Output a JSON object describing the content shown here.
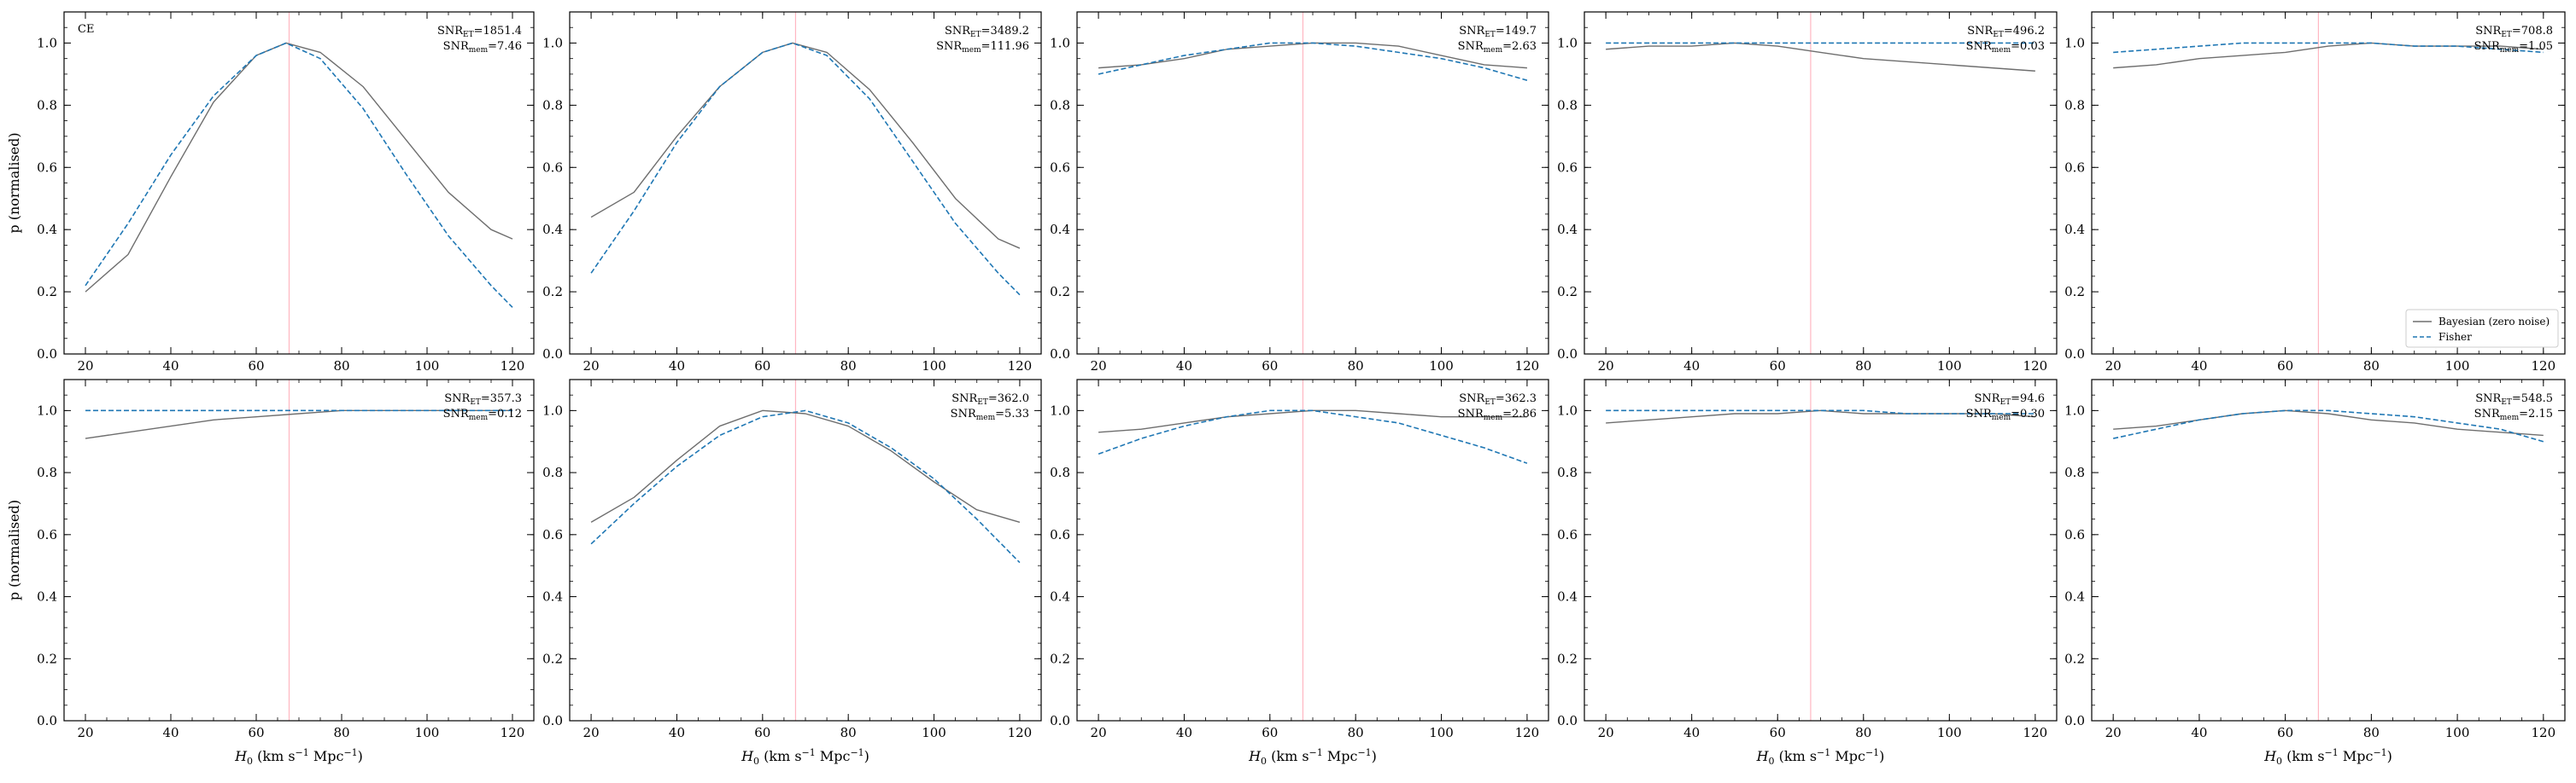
{
  "figure": {
    "ylabel": "p (normalised)",
    "xlabel": "$H_0$ (km s$^{-1}$ Mpc$^{-1}$)",
    "xlabel_main": "H",
    "xlabel_sub": "0",
    "xlabel_rest1": " (km s",
    "xlabel_sup1": "−1",
    "xlabel_rest2": " Mpc",
    "xlabel_sup2": "−1",
    "xlabel_rest3": ")",
    "colors": {
      "bayesian": "#6e6e6e",
      "fisher": "#1f77b4",
      "truth": "#ffb6c1"
    }
  },
  "chart_data": [
    {
      "type": "line",
      "panel_label": "CE",
      "snr_et": "1851.4",
      "snr_mem": "7.46",
      "truth_x": 67.7,
      "xlim": [
        15,
        125
      ],
      "ylim": [
        0,
        1.1
      ],
      "xticks": [
        20,
        40,
        60,
        80,
        100,
        120
      ],
      "yticks": [
        0.0,
        0.2,
        0.4,
        0.6,
        0.8,
        1.0
      ],
      "series": [
        {
          "name": "Bayesian (zero noise)",
          "style": "solid",
          "x": [
            20,
            30,
            40,
            50,
            60,
            67,
            75,
            85,
            95,
            105,
            115,
            120
          ],
          "y": [
            0.2,
            0.32,
            0.57,
            0.81,
            0.96,
            1.0,
            0.97,
            0.86,
            0.69,
            0.52,
            0.4,
            0.37
          ]
        },
        {
          "name": "Fisher",
          "style": "dashed",
          "x": [
            20,
            30,
            40,
            50,
            60,
            67,
            75,
            85,
            95,
            105,
            115,
            120
          ],
          "y": [
            0.22,
            0.42,
            0.64,
            0.83,
            0.96,
            1.0,
            0.95,
            0.79,
            0.58,
            0.38,
            0.22,
            0.15
          ]
        }
      ]
    },
    {
      "type": "line",
      "snr_et": "3489.2",
      "snr_mem": "111.96",
      "truth_x": 67.7,
      "xlim": [
        15,
        125
      ],
      "ylim": [
        0,
        1.1
      ],
      "xticks": [
        20,
        40,
        60,
        80,
        100,
        120
      ],
      "yticks": [
        0.0,
        0.2,
        0.4,
        0.6,
        0.8,
        1.0
      ],
      "series": [
        {
          "name": "Bayesian (zero noise)",
          "style": "solid",
          "x": [
            20,
            30,
            40,
            50,
            60,
            67,
            75,
            85,
            95,
            105,
            115,
            120
          ],
          "y": [
            0.44,
            0.52,
            0.7,
            0.86,
            0.97,
            1.0,
            0.97,
            0.85,
            0.68,
            0.5,
            0.37,
            0.34
          ]
        },
        {
          "name": "Fisher",
          "style": "dashed",
          "x": [
            20,
            30,
            40,
            50,
            60,
            67,
            75,
            85,
            95,
            105,
            115,
            120
          ],
          "y": [
            0.26,
            0.46,
            0.68,
            0.86,
            0.97,
            1.0,
            0.96,
            0.82,
            0.62,
            0.42,
            0.26,
            0.19
          ]
        }
      ]
    },
    {
      "type": "line",
      "snr_et": "149.7",
      "snr_mem": "2.63",
      "truth_x": 67.7,
      "xlim": [
        15,
        125
      ],
      "ylim": [
        0,
        1.1
      ],
      "xticks": [
        20,
        40,
        60,
        80,
        100,
        120
      ],
      "yticks": [
        0.0,
        0.2,
        0.4,
        0.6,
        0.8,
        1.0
      ],
      "series": [
        {
          "name": "Bayesian (zero noise)",
          "style": "solid",
          "x": [
            20,
            30,
            40,
            50,
            60,
            70,
            80,
            90,
            100,
            110,
            120
          ],
          "y": [
            0.92,
            0.93,
            0.95,
            0.98,
            0.99,
            1.0,
            1.0,
            0.99,
            0.96,
            0.93,
            0.92
          ]
        },
        {
          "name": "Fisher",
          "style": "dashed",
          "x": [
            20,
            30,
            40,
            50,
            60,
            70,
            80,
            90,
            100,
            110,
            120
          ],
          "y": [
            0.9,
            0.93,
            0.96,
            0.98,
            1.0,
            1.0,
            0.99,
            0.97,
            0.95,
            0.92,
            0.88
          ]
        }
      ]
    },
    {
      "type": "line",
      "snr_et": "496.2",
      "snr_mem": "0.03",
      "truth_x": 67.7,
      "xlim": [
        15,
        125
      ],
      "ylim": [
        0,
        1.1
      ],
      "xticks": [
        20,
        40,
        60,
        80,
        100,
        120
      ],
      "yticks": [
        0.0,
        0.2,
        0.4,
        0.6,
        0.8,
        1.0
      ],
      "series": [
        {
          "name": "Bayesian (zero noise)",
          "style": "solid",
          "x": [
            20,
            30,
            40,
            50,
            60,
            70,
            80,
            90,
            100,
            110,
            120
          ],
          "y": [
            0.98,
            0.99,
            0.99,
            1.0,
            0.99,
            0.97,
            0.95,
            0.94,
            0.93,
            0.92,
            0.91
          ]
        },
        {
          "name": "Fisher",
          "style": "dashed",
          "x": [
            20,
            30,
            40,
            50,
            60,
            70,
            80,
            90,
            100,
            110,
            120
          ],
          "y": [
            1.0,
            1.0,
            1.0,
            1.0,
            1.0,
            1.0,
            1.0,
            1.0,
            1.0,
            1.0,
            1.0
          ]
        }
      ]
    },
    {
      "type": "line",
      "snr_et": "708.8",
      "snr_mem": "1.05",
      "truth_x": 67.7,
      "xlim": [
        15,
        125
      ],
      "ylim": [
        0,
        1.1
      ],
      "legend": "bottom-right",
      "xticks": [
        20,
        40,
        60,
        80,
        100,
        120
      ],
      "yticks": [
        0.0,
        0.2,
        0.4,
        0.6,
        0.8,
        1.0
      ],
      "series": [
        {
          "name": "Bayesian (zero noise)",
          "style": "solid",
          "x": [
            20,
            30,
            40,
            50,
            60,
            70,
            80,
            90,
            100,
            110,
            120
          ],
          "y": [
            0.92,
            0.93,
            0.95,
            0.96,
            0.97,
            0.99,
            1.0,
            0.99,
            0.99,
            0.99,
            0.98
          ]
        },
        {
          "name": "Fisher",
          "style": "dashed",
          "x": [
            20,
            30,
            40,
            50,
            60,
            70,
            80,
            90,
            100,
            110,
            120
          ],
          "y": [
            0.97,
            0.98,
            0.99,
            1.0,
            1.0,
            1.0,
            1.0,
            0.99,
            0.99,
            0.98,
            0.97
          ]
        }
      ]
    },
    {
      "type": "line",
      "snr_et": "357.3",
      "snr_mem": "0.12",
      "truth_x": 67.7,
      "xlim": [
        15,
        125
      ],
      "ylim": [
        0,
        1.1
      ],
      "xticks": [
        20,
        40,
        60,
        80,
        100,
        120
      ],
      "yticks": [
        0.0,
        0.2,
        0.4,
        0.6,
        0.8,
        1.0
      ],
      "series": [
        {
          "name": "Bayesian (zero noise)",
          "style": "solid",
          "x": [
            20,
            30,
            40,
            50,
            60,
            70,
            80,
            90,
            100,
            110,
            120
          ],
          "y": [
            0.91,
            0.93,
            0.95,
            0.97,
            0.98,
            0.99,
            1.0,
            1.0,
            1.0,
            1.0,
            1.0
          ]
        },
        {
          "name": "Fisher",
          "style": "dashed",
          "x": [
            20,
            30,
            40,
            50,
            60,
            70,
            80,
            90,
            100,
            110,
            120
          ],
          "y": [
            1.0,
            1.0,
            1.0,
            1.0,
            1.0,
            1.0,
            1.0,
            1.0,
            1.0,
            1.0,
            1.0
          ]
        }
      ]
    },
    {
      "type": "line",
      "snr_et": "362.0",
      "snr_mem": "5.33",
      "truth_x": 67.7,
      "xlim": [
        15,
        125
      ],
      "ylim": [
        0,
        1.1
      ],
      "xticks": [
        20,
        40,
        60,
        80,
        100,
        120
      ],
      "yticks": [
        0.0,
        0.2,
        0.4,
        0.6,
        0.8,
        1.0
      ],
      "series": [
        {
          "name": "Bayesian (zero noise)",
          "style": "solid",
          "x": [
            20,
            30,
            40,
            50,
            60,
            70,
            80,
            90,
            100,
            110,
            120
          ],
          "y": [
            0.64,
            0.72,
            0.84,
            0.95,
            1.0,
            0.99,
            0.95,
            0.87,
            0.77,
            0.68,
            0.64
          ]
        },
        {
          "name": "Fisher",
          "style": "dashed",
          "x": [
            20,
            30,
            40,
            50,
            60,
            70,
            80,
            90,
            100,
            110,
            120
          ],
          "y": [
            0.57,
            0.7,
            0.82,
            0.92,
            0.98,
            1.0,
            0.96,
            0.88,
            0.78,
            0.65,
            0.51
          ]
        }
      ]
    },
    {
      "type": "line",
      "snr_et": "362.3",
      "snr_mem": "2.86",
      "truth_x": 67.7,
      "xlim": [
        15,
        125
      ],
      "ylim": [
        0,
        1.1
      ],
      "xticks": [
        20,
        40,
        60,
        80,
        100,
        120
      ],
      "yticks": [
        0.0,
        0.2,
        0.4,
        0.6,
        0.8,
        1.0
      ],
      "series": [
        {
          "name": "Bayesian (zero noise)",
          "style": "solid",
          "x": [
            20,
            30,
            40,
            50,
            60,
            70,
            80,
            90,
            100,
            110,
            120
          ],
          "y": [
            0.93,
            0.94,
            0.96,
            0.98,
            0.99,
            1.0,
            1.0,
            0.99,
            0.98,
            0.98,
            0.98
          ]
        },
        {
          "name": "Fisher",
          "style": "dashed",
          "x": [
            20,
            30,
            40,
            50,
            60,
            70,
            80,
            90,
            100,
            110,
            120
          ],
          "y": [
            0.86,
            0.91,
            0.95,
            0.98,
            1.0,
            1.0,
            0.98,
            0.96,
            0.92,
            0.88,
            0.83
          ]
        }
      ]
    },
    {
      "type": "line",
      "snr_et": "94.6",
      "snr_mem": "0.30",
      "truth_x": 67.7,
      "xlim": [
        15,
        125
      ],
      "ylim": [
        0,
        1.1
      ],
      "xticks": [
        20,
        40,
        60,
        80,
        100,
        120
      ],
      "yticks": [
        0.0,
        0.2,
        0.4,
        0.6,
        0.8,
        1.0
      ],
      "series": [
        {
          "name": "Bayesian (zero noise)",
          "style": "solid",
          "x": [
            20,
            30,
            40,
            50,
            60,
            70,
            80,
            90,
            100,
            110,
            120
          ],
          "y": [
            0.96,
            0.97,
            0.98,
            0.99,
            0.99,
            1.0,
            0.99,
            0.99,
            0.99,
            0.99,
            0.98
          ]
        },
        {
          "name": "Fisher",
          "style": "dashed",
          "x": [
            20,
            30,
            40,
            50,
            60,
            70,
            80,
            90,
            100,
            110,
            120
          ],
          "y": [
            1.0,
            1.0,
            1.0,
            1.0,
            1.0,
            1.0,
            1.0,
            0.99,
            0.99,
            0.99,
            0.99
          ]
        }
      ]
    },
    {
      "type": "line",
      "snr_et": "548.5",
      "snr_mem": "2.15",
      "truth_x": 67.7,
      "xlim": [
        15,
        125
      ],
      "ylim": [
        0,
        1.1
      ],
      "xticks": [
        20,
        40,
        60,
        80,
        100,
        120
      ],
      "yticks": [
        0.0,
        0.2,
        0.4,
        0.6,
        0.8,
        1.0
      ],
      "series": [
        {
          "name": "Bayesian (zero noise)",
          "style": "solid",
          "x": [
            20,
            30,
            40,
            50,
            60,
            70,
            80,
            90,
            100,
            110,
            120
          ],
          "y": [
            0.94,
            0.95,
            0.97,
            0.99,
            1.0,
            0.99,
            0.97,
            0.96,
            0.94,
            0.93,
            0.92
          ]
        },
        {
          "name": "Fisher",
          "style": "dashed",
          "x": [
            20,
            30,
            40,
            50,
            60,
            70,
            80,
            90,
            100,
            110,
            120
          ],
          "y": [
            0.91,
            0.94,
            0.97,
            0.99,
            1.0,
            1.0,
            0.99,
            0.98,
            0.96,
            0.94,
            0.9
          ]
        }
      ]
    }
  ]
}
